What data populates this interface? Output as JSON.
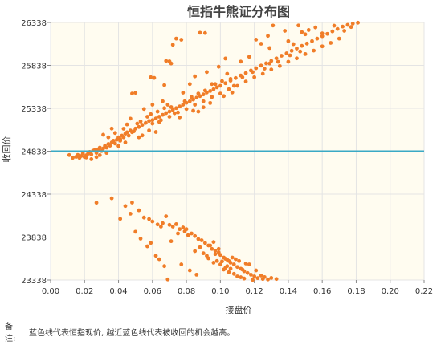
{
  "chart_data": {
    "type": "scatter",
    "title": "恒指牛熊证分布图",
    "xlabel": "接盘价",
    "ylabel": "收回价",
    "xlim": [
      0,
      0.22
    ],
    "ylim": [
      23338,
      26338
    ],
    "xticks": [
      "0.00",
      "0.02",
      "0.04",
      "0.06",
      "0.08",
      "0.10",
      "0.12",
      "0.14",
      "0.16",
      "0.18",
      "0.20",
      "0.22"
    ],
    "yticks": [
      "23338",
      "23838",
      "24338",
      "24838",
      "25338",
      "25838",
      "26338"
    ],
    "reference_line": {
      "y": 24838,
      "color": "#3aa9c5"
    },
    "point_color": "#f07d28",
    "plot_background": "#fffcf0",
    "upper_cluster": [
      [
        0.011,
        24793
      ],
      [
        0.013,
        24760
      ],
      [
        0.015,
        24772
      ],
      [
        0.016,
        24795
      ],
      [
        0.017,
        24760
      ],
      [
        0.018,
        24782
      ],
      [
        0.019,
        24810
      ],
      [
        0.02,
        24770
      ],
      [
        0.021,
        24790
      ],
      [
        0.022,
        24808
      ],
      [
        0.023,
        24830
      ],
      [
        0.024,
        24800
      ],
      [
        0.025,
        24844
      ],
      [
        0.026,
        24852
      ],
      [
        0.027,
        24818
      ],
      [
        0.028,
        24860
      ],
      [
        0.029,
        24880
      ],
      [
        0.03,
        24840
      ],
      [
        0.031,
        24870
      ],
      [
        0.032,
        24900
      ],
      [
        0.033,
        24880
      ],
      [
        0.034,
        24922
      ],
      [
        0.035,
        24903
      ],
      [
        0.036,
        24940
      ],
      [
        0.037,
        24960
      ],
      [
        0.038,
        24928
      ],
      [
        0.039,
        24972
      ],
      [
        0.04,
        25000
      ],
      [
        0.041,
        24979
      ],
      [
        0.042,
        25020
      ],
      [
        0.043,
        25000
      ],
      [
        0.044,
        25042
      ],
      [
        0.045,
        25058
      ],
      [
        0.046,
        25020
      ],
      [
        0.047,
        25080
      ],
      [
        0.048,
        25060
      ],
      [
        0.05,
        25102
      ],
      [
        0.052,
        25120
      ],
      [
        0.054,
        25145
      ],
      [
        0.056,
        25168
      ],
      [
        0.058,
        25190
      ],
      [
        0.06,
        25200
      ],
      [
        0.062,
        25220
      ],
      [
        0.064,
        25240
      ],
      [
        0.066,
        25262
      ],
      [
        0.068,
        25282
      ],
      [
        0.07,
        25300
      ],
      [
        0.072,
        25320
      ],
      [
        0.074,
        25340
      ],
      [
        0.076,
        25360
      ],
      [
        0.078,
        25380
      ],
      [
        0.08,
        25402
      ],
      [
        0.082,
        25420
      ],
      [
        0.084,
        25440
      ],
      [
        0.086,
        25462
      ],
      [
        0.088,
        25480
      ],
      [
        0.09,
        25500
      ],
      [
        0.092,
        25522
      ],
      [
        0.094,
        25540
      ],
      [
        0.096,
        25560
      ],
      [
        0.098,
        25582
      ],
      [
        0.1,
        25600
      ],
      [
        0.103,
        25630
      ],
      [
        0.106,
        25660
      ],
      [
        0.109,
        25690
      ],
      [
        0.112,
        25720
      ],
      [
        0.115,
        25748
      ],
      [
        0.118,
        25778
      ],
      [
        0.121,
        25805
      ],
      [
        0.124,
        25835
      ],
      [
        0.127,
        25862
      ],
      [
        0.13,
        25890
      ],
      [
        0.133,
        25920
      ],
      [
        0.136,
        25950
      ],
      [
        0.139,
        25978
      ],
      [
        0.142,
        26008
      ],
      [
        0.145,
        26035
      ],
      [
        0.148,
        26065
      ],
      [
        0.151,
        26092
      ],
      [
        0.154,
        26120
      ],
      [
        0.157,
        26150
      ],
      [
        0.16,
        26178
      ],
      [
        0.163,
        26205
      ],
      [
        0.166,
        26234
      ],
      [
        0.169,
        26262
      ],
      [
        0.172,
        26290
      ],
      [
        0.175,
        26310
      ],
      [
        0.178,
        26325
      ],
      [
        0.181,
        26335
      ],
      [
        0.06,
        25160
      ],
      [
        0.065,
        25200
      ],
      [
        0.07,
        25240
      ],
      [
        0.075,
        25290
      ],
      [
        0.08,
        25330
      ],
      [
        0.085,
        25380
      ],
      [
        0.09,
        25420
      ],
      [
        0.095,
        25470
      ],
      [
        0.1,
        25510
      ],
      [
        0.105,
        25560
      ],
      [
        0.11,
        25600
      ],
      [
        0.115,
        25650
      ],
      [
        0.12,
        25700
      ],
      [
        0.125,
        25740
      ],
      [
        0.13,
        25790
      ],
      [
        0.135,
        25830
      ],
      [
        0.14,
        25880
      ],
      [
        0.145,
        25920
      ],
      [
        0.15,
        25970
      ],
      [
        0.155,
        26010
      ],
      [
        0.16,
        26060
      ],
      [
        0.165,
        26100
      ],
      [
        0.17,
        26150
      ],
      [
        0.15,
        26200
      ],
      [
        0.148,
        26225
      ],
      [
        0.152,
        26250
      ],
      [
        0.14,
        26120
      ],
      [
        0.143,
        26085
      ],
      [
        0.16,
        26210
      ],
      [
        0.156,
        26280
      ],
      [
        0.167,
        26300
      ],
      [
        0.173,
        26240
      ],
      [
        0.177,
        26285
      ],
      [
        0.038,
        25050
      ],
      [
        0.034,
        25000
      ],
      [
        0.036,
        25102
      ],
      [
        0.031,
        25030
      ],
      [
        0.043,
        25100
      ],
      [
        0.049,
        25070
      ],
      [
        0.051,
        25160
      ],
      [
        0.053,
        25185
      ],
      [
        0.057,
        25240
      ],
      [
        0.059,
        25270
      ],
      [
        0.063,
        25300
      ],
      [
        0.067,
        25340
      ],
      [
        0.069,
        25380
      ],
      [
        0.071,
        25352
      ],
      [
        0.073,
        25280
      ],
      [
        0.079,
        25420
      ],
      [
        0.083,
        25470
      ],
      [
        0.087,
        25510
      ],
      [
        0.091,
        25545
      ],
      [
        0.097,
        25620
      ],
      [
        0.101,
        25655
      ],
      [
        0.108,
        25600
      ],
      [
        0.113,
        25700
      ],
      [
        0.119,
        25760
      ],
      [
        0.126,
        25800
      ],
      [
        0.129,
        25860
      ],
      [
        0.134,
        25880
      ],
      [
        0.141,
        25955
      ],
      [
        0.147,
        26000
      ],
      [
        0.088,
        26218
      ],
      [
        0.091,
        26215
      ],
      [
        0.074,
        26150
      ],
      [
        0.077,
        26137
      ],
      [
        0.072,
        26078
      ],
      [
        0.068,
        25890
      ],
      [
        0.07,
        25885
      ],
      [
        0.071,
        25860
      ],
      [
        0.059,
        25700
      ],
      [
        0.061,
        25692
      ],
      [
        0.067,
        25608
      ],
      [
        0.05,
        25518
      ],
      [
        0.048,
        25510
      ],
      [
        0.103,
        25918
      ],
      [
        0.112,
        25882
      ],
      [
        0.117,
        25938
      ],
      [
        0.121,
        26138
      ],
      [
        0.124,
        26090
      ],
      [
        0.128,
        26182
      ],
      [
        0.129,
        26040
      ],
      [
        0.138,
        26240
      ],
      [
        0.131,
        26302
      ],
      [
        0.146,
        26303
      ],
      [
        0.085,
        25710
      ],
      [
        0.092,
        25760
      ],
      [
        0.099,
        25822
      ],
      [
        0.104,
        25740
      ],
      [
        0.106,
        25680
      ],
      [
        0.095,
        25620
      ],
      [
        0.082,
        25620
      ],
      [
        0.087,
        25300
      ],
      [
        0.09,
        25350
      ],
      [
        0.102,
        25480
      ],
      [
        0.107,
        25522
      ],
      [
        0.021,
        24765
      ],
      [
        0.024,
        24745
      ],
      [
        0.029,
        24792
      ],
      [
        0.033,
        24818
      ],
      [
        0.027,
        24770
      ],
      [
        0.045,
        25150
      ],
      [
        0.047,
        25218
      ],
      [
        0.041,
        24960
      ],
      [
        0.055,
        25330
      ],
      [
        0.06,
        25380
      ],
      [
        0.066,
        25420
      ],
      [
        0.078,
        25520
      ],
      [
        0.058,
        25080
      ],
      [
        0.062,
        25062
      ],
      [
        0.054,
        25022
      ],
      [
        0.04,
        24900
      ],
      [
        0.044,
        24940
      ],
      [
        0.052,
        25000
      ],
      [
        0.064,
        25180
      ],
      [
        0.076,
        25232
      ],
      [
        0.084,
        25310
      ],
      [
        0.094,
        25400
      ]
    ],
    "lower_cluster": [
      [
        0.027,
        24238
      ],
      [
        0.036,
        24290
      ],
      [
        0.044,
        24200
      ],
      [
        0.047,
        24110
      ],
      [
        0.041,
        24050
      ],
      [
        0.055,
        24065
      ],
      [
        0.058,
        24048
      ],
      [
        0.06,
        24020
      ],
      [
        0.063,
        23985
      ],
      [
        0.066,
        24000
      ],
      [
        0.068,
        24080
      ],
      [
        0.07,
        23980
      ],
      [
        0.072,
        23960
      ],
      [
        0.074,
        23988
      ],
      [
        0.076,
        23930
      ],
      [
        0.078,
        23950
      ],
      [
        0.079,
        23905
      ],
      [
        0.081,
        23860
      ],
      [
        0.083,
        23880
      ],
      [
        0.085,
        23850
      ],
      [
        0.087,
        23815
      ],
      [
        0.089,
        23800
      ],
      [
        0.091,
        23770
      ],
      [
        0.093,
        23740
      ],
      [
        0.095,
        23700
      ],
      [
        0.097,
        23680
      ],
      [
        0.099,
        23660
      ],
      [
        0.1,
        23630
      ],
      [
        0.102,
        23600
      ],
      [
        0.104,
        23575
      ],
      [
        0.105,
        23560
      ],
      [
        0.106,
        23540
      ],
      [
        0.108,
        23520
      ],
      [
        0.11,
        23490
      ],
      [
        0.112,
        23470
      ],
      [
        0.114,
        23440
      ],
      [
        0.116,
        23420
      ],
      [
        0.118,
        23400
      ],
      [
        0.12,
        23380
      ],
      [
        0.122,
        23360
      ],
      [
        0.125,
        23350
      ],
      [
        0.128,
        23345
      ],
      [
        0.05,
        23900
      ],
      [
        0.053,
        23820
      ],
      [
        0.057,
        23730
      ],
      [
        0.062,
        23620
      ],
      [
        0.064,
        23580
      ],
      [
        0.067,
        23500
      ],
      [
        0.069,
        23345
      ],
      [
        0.077,
        23520
      ],
      [
        0.082,
        23450
      ],
      [
        0.086,
        23400
      ],
      [
        0.088,
        23720
      ],
      [
        0.092,
        23620
      ],
      [
        0.094,
        23740
      ],
      [
        0.096,
        23540
      ],
      [
        0.098,
        23560
      ],
      [
        0.101,
        23555
      ],
      [
        0.103,
        23585
      ],
      [
        0.107,
        23600
      ],
      [
        0.109,
        23580
      ],
      [
        0.111,
        23560
      ],
      [
        0.113,
        23460
      ],
      [
        0.115,
        23530
      ],
      [
        0.117,
        23520
      ],
      [
        0.119,
        23340
      ],
      [
        0.121,
        23450
      ],
      [
        0.124,
        23390
      ],
      [
        0.126,
        23372
      ],
      [
        0.13,
        23362
      ],
      [
        0.133,
        23350
      ],
      [
        0.096,
        23780
      ],
      [
        0.1,
        23520
      ],
      [
        0.103,
        23480
      ],
      [
        0.105,
        23430
      ],
      [
        0.108,
        23410
      ],
      [
        0.11,
        23380
      ],
      [
        0.112,
        23370
      ],
      [
        0.114,
        23355
      ],
      [
        0.09,
        23650
      ],
      [
        0.093,
        23590
      ],
      [
        0.097,
        23640
      ],
      [
        0.099,
        23700
      ],
      [
        0.102,
        23460
      ],
      [
        0.104,
        23500
      ],
      [
        0.106,
        23470
      ],
      [
        0.085,
        23675
      ],
      [
        0.08,
        23930
      ],
      [
        0.075,
        23880
      ],
      [
        0.071,
        23790
      ],
      [
        0.065,
        23960
      ],
      [
        0.059,
        23770
      ],
      [
        0.052,
        24150
      ],
      [
        0.048,
        24240
      ]
    ]
  },
  "note": {
    "label": "备注:",
    "text": "蓝色线代表恒指现价, 越近蓝色线代表被收回的机会越高。"
  }
}
